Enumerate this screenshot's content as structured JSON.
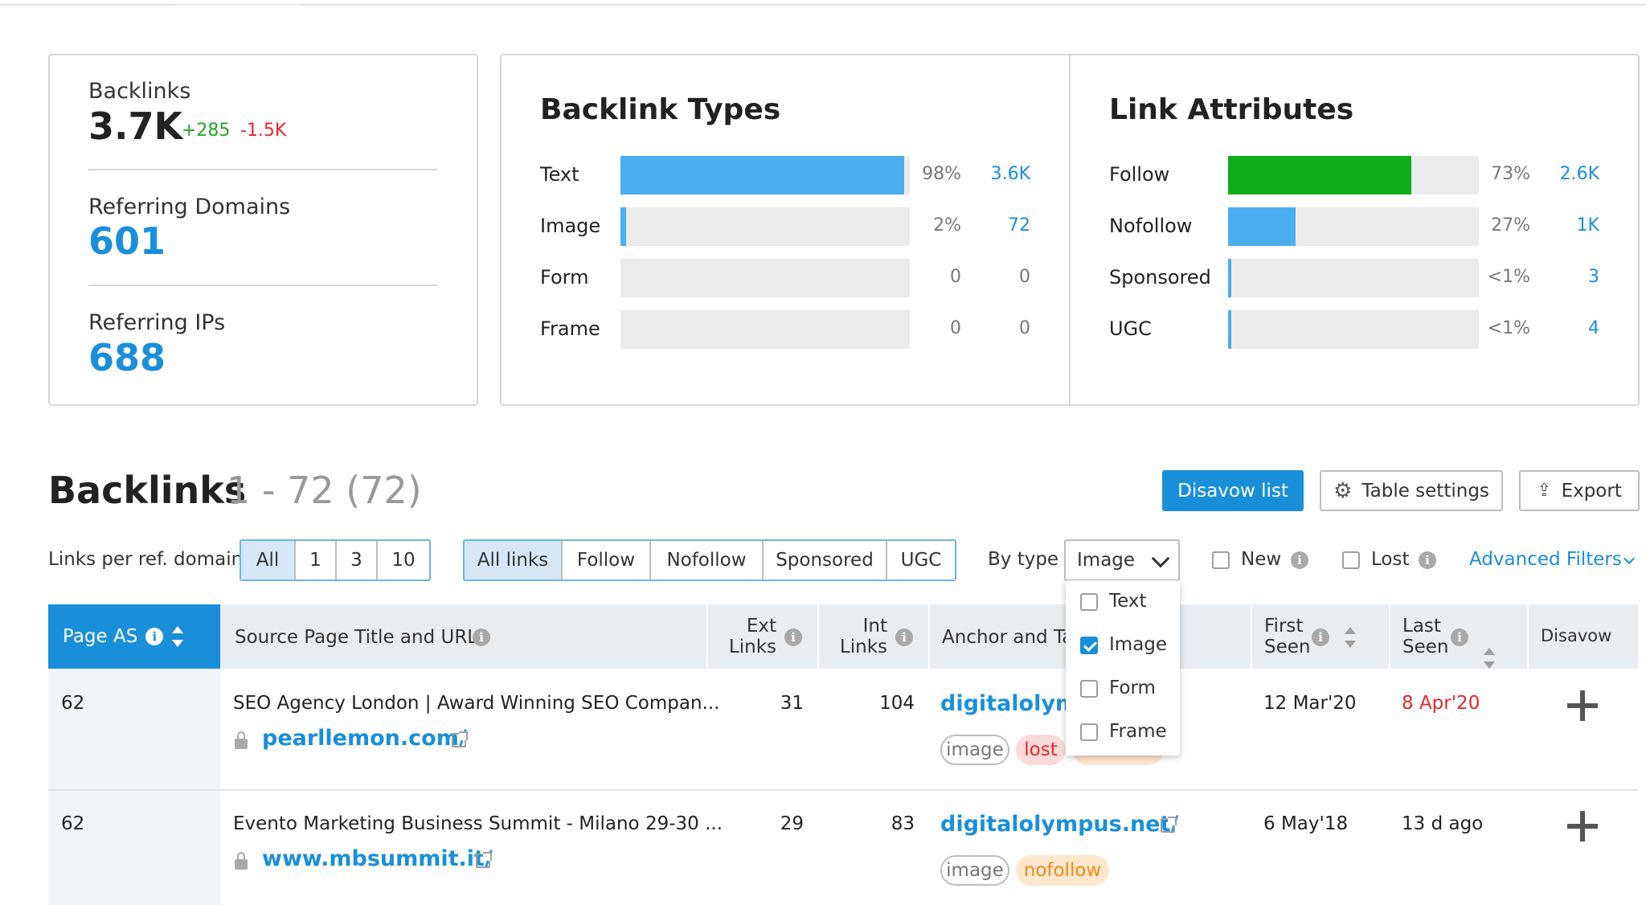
{
  "summary": {
    "backlinks": {
      "label": "Backlinks",
      "value": "3.7K",
      "new": "+285",
      "lost": "-1.5K"
    },
    "referring_domains": {
      "label": "Referring Domains",
      "value": "601"
    },
    "referring_ips": {
      "label": "Referring IPs",
      "value": "688"
    }
  },
  "backlink_types": {
    "title": "Backlink Types",
    "rows": [
      {
        "label": "Text",
        "percent": "98%",
        "count": "3.6K",
        "fraction": 0.98
      },
      {
        "label": "Image",
        "percent": "2%",
        "count": "72",
        "fraction": 0.02
      },
      {
        "label": "Form",
        "percent": "0",
        "count": "0",
        "fraction": 0
      },
      {
        "label": "Frame",
        "percent": "0",
        "count": "0",
        "fraction": 0
      }
    ]
  },
  "link_attributes": {
    "title": "Link Attributes",
    "rows": [
      {
        "label": "Follow",
        "percent": "73%",
        "count": "2.6K",
        "fraction": 0.73,
        "color": "#0ead1b"
      },
      {
        "label": "Nofollow",
        "percent": "27%",
        "count": "1K",
        "fraction": 0.27,
        "color": "#4aaef0"
      },
      {
        "label": "Sponsored",
        "percent": "<1%",
        "count": "3",
        "fraction": 0.01,
        "color": "#4aaef0"
      },
      {
        "label": "UGC",
        "percent": "<1%",
        "count": "4",
        "fraction": 0.01,
        "color": "#4aaef0"
      }
    ]
  },
  "backlinks_section": {
    "title": "Backlinks",
    "range": "1 - 72 (72)",
    "disavow_button": "Disavow list",
    "table_settings_button": "Table settings",
    "export_button": "Export"
  },
  "filters": {
    "links_per_domain_label": "Links per ref. domain",
    "links_per_domain_options": [
      "All",
      "1",
      "3",
      "10"
    ],
    "link_type_options": [
      "All links",
      "Follow",
      "Nofollow",
      "Sponsored",
      "UGC"
    ],
    "by_type_label": "By type",
    "by_type_selected": "Image",
    "by_type_options": [
      {
        "label": "Text",
        "checked": false
      },
      {
        "label": "Image",
        "checked": true
      },
      {
        "label": "Form",
        "checked": false
      },
      {
        "label": "Frame",
        "checked": false
      }
    ],
    "new_label": "New",
    "lost_label": "Lost",
    "advanced_filters": "Advanced Filters"
  },
  "table": {
    "headers": {
      "page_as": "Page AS",
      "source": "Source Page Title and URL",
      "ext_links_1": "Ext",
      "ext_links_2": "Links",
      "int_links_1": "Int",
      "int_links_2": "Links",
      "anchor": "Anchor and Ta",
      "first_seen_1": "First",
      "first_seen_2": "Seen",
      "last_seen_1": "Last",
      "last_seen_2": "Seen",
      "disavow": "Disavow"
    },
    "rows": [
      {
        "page_as": "62",
        "title": "SEO Agency London | Award Winning SEO Compan...",
        "url": "pearllemon.com/",
        "ext_links": "31",
        "int_links": "104",
        "anchor": "digitalolymp",
        "tags": [
          "image",
          "lost"
        ],
        "first_seen": "12 Mar'20",
        "last_seen": "8 Apr'20"
      },
      {
        "page_as": "62",
        "title": "Evento Marketing Business Summit - Milano 29-30 ...",
        "url": "www.mbsummit.it/",
        "ext_links": "29",
        "int_links": "83",
        "anchor": "digitalolympus.net/",
        "tags": [
          "image",
          "nofollow"
        ],
        "first_seen": "6 May'18",
        "last_seen": "13 d ago"
      }
    ]
  }
}
